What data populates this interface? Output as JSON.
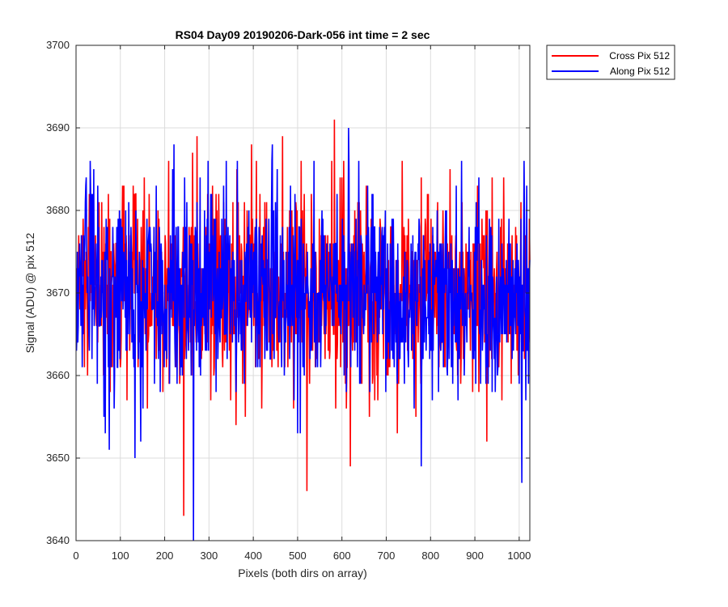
{
  "chart_data": {
    "type": "line",
    "title": "RS04 Day09 20190206-Dark-056 int time = 2 sec",
    "xlabel": "Pixels (both dirs on array)",
    "ylabel": "Signal (ADU) @ pix 512",
    "xlim": [
      0,
      1024
    ],
    "ylim": [
      3640,
      3700
    ],
    "xticks": [
      0,
      100,
      200,
      300,
      400,
      500,
      600,
      700,
      800,
      900,
      1000
    ],
    "yticks": [
      3640,
      3650,
      3660,
      3670,
      3680,
      3690,
      3700
    ],
    "grid": true,
    "legend_position": "outside-top-right",
    "noise_model": {
      "mean": 3670,
      "std": 6
    },
    "series": [
      {
        "name": "Cross Pix 512",
        "color": "#ff0000",
        "extremes": [
          {
            "x": 242,
            "y": 3643
          },
          {
            "x": 520,
            "y": 3646
          },
          {
            "x": 582,
            "y": 3691
          },
          {
            "x": 618,
            "y": 3649
          },
          {
            "x": 272,
            "y": 3689
          },
          {
            "x": 262,
            "y": 3687
          },
          {
            "x": 465,
            "y": 3689
          },
          {
            "x": 395,
            "y": 3688
          }
        ]
      },
      {
        "name": "Along Pix 512",
        "color": "#0000ff",
        "extremes": [
          {
            "x": 264,
            "y": 3640
          },
          {
            "x": 614,
            "y": 3690
          },
          {
            "x": 1005,
            "y": 3647
          },
          {
            "x": 778,
            "y": 3649
          },
          {
            "x": 220,
            "y": 3688
          },
          {
            "x": 132,
            "y": 3650
          },
          {
            "x": 74,
            "y": 3651
          },
          {
            "x": 442,
            "y": 3688
          }
        ]
      }
    ]
  }
}
